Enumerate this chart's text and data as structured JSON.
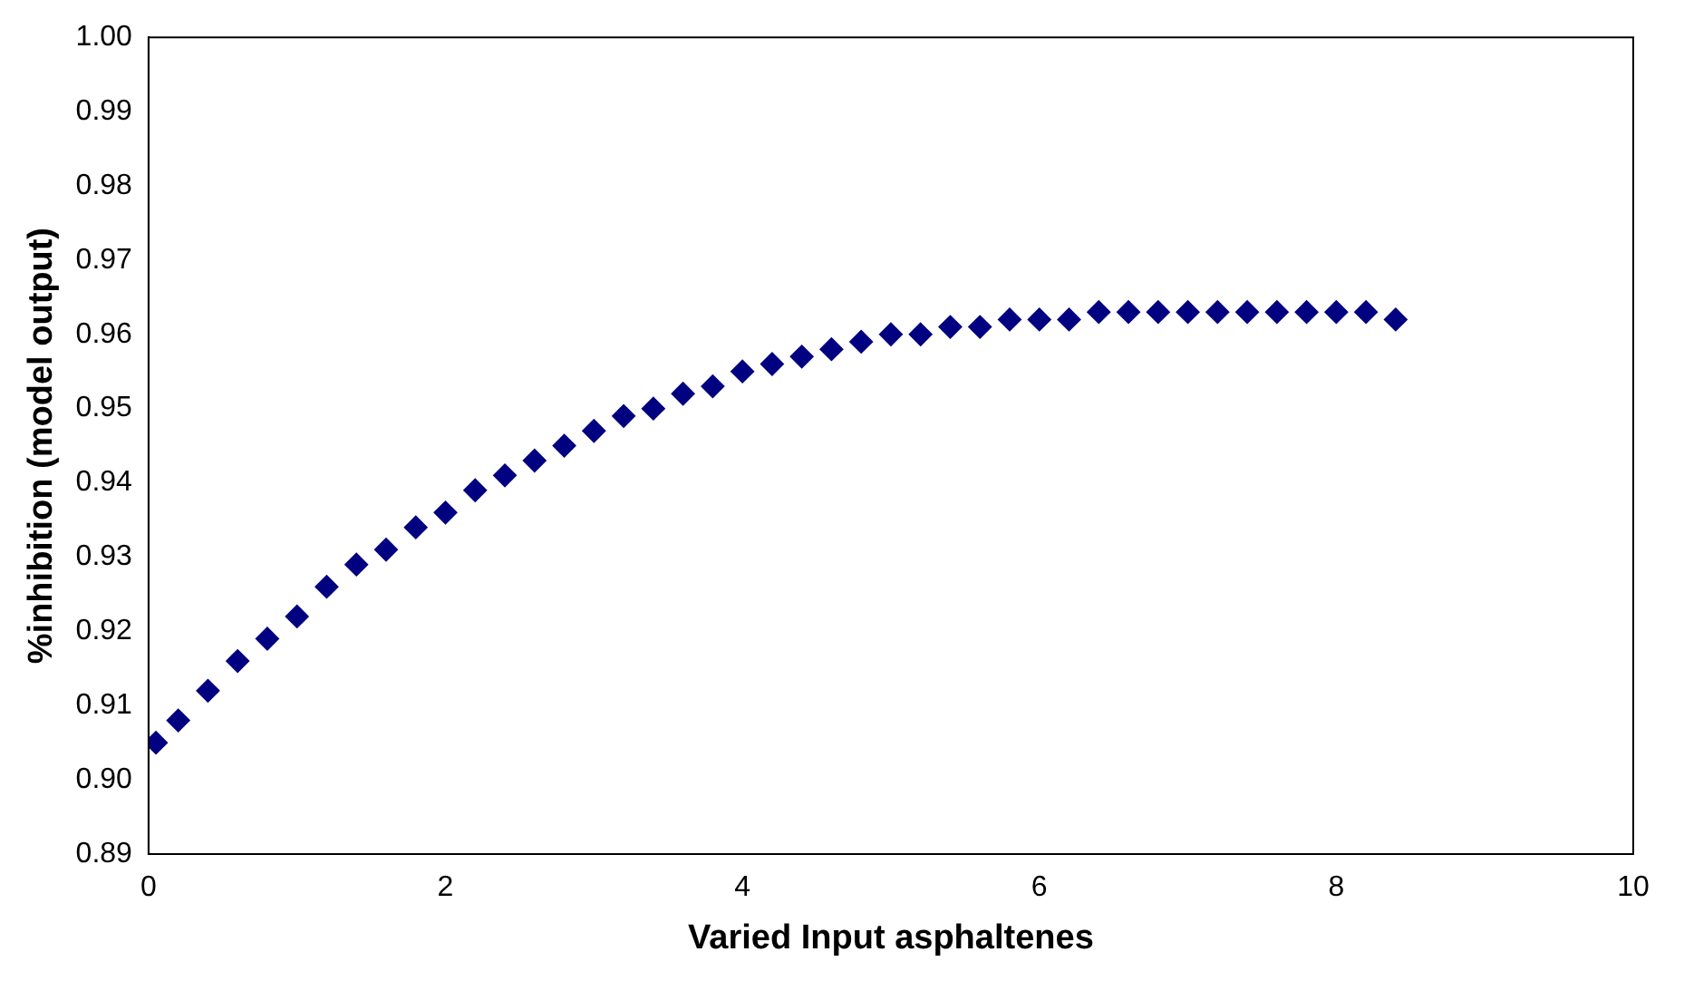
{
  "chart_data": {
    "type": "scatter",
    "xlabel": "Varied Input asphaltenes",
    "ylabel": "%inhibition (model output)",
    "xlim": [
      0,
      10
    ],
    "xticks": [
      0,
      2,
      4,
      6,
      8,
      10
    ],
    "ylim": [
      0.89,
      1.0
    ],
    "yticks": [
      {
        "value": 0.89,
        "label": "0.89"
      },
      {
        "value": 0.9,
        "label": "0.90"
      },
      {
        "value": 0.91,
        "label": "0.91"
      },
      {
        "value": 0.92,
        "label": "0.92"
      },
      {
        "value": 0.93,
        "label": "0.93"
      },
      {
        "value": 0.94,
        "label": "0.94"
      },
      {
        "value": 0.95,
        "label": "0.95"
      },
      {
        "value": 0.96,
        "label": "0.96"
      },
      {
        "value": 0.97,
        "label": "0.97"
      },
      {
        "value": 0.98,
        "label": "0.98"
      },
      {
        "value": 0.99,
        "label": "0.99"
      },
      {
        "value": 1.0,
        "label": "1.00"
      }
    ],
    "grid": false,
    "legend": false,
    "marker": "diamond",
    "series": [
      {
        "color": "#000080",
        "x": [
          0.05,
          0.2,
          0.4,
          0.6,
          0.8,
          1.0,
          1.2,
          1.4,
          1.6,
          1.8,
          2.0,
          2.2,
          2.4,
          2.6,
          2.8,
          3.0,
          3.2,
          3.4,
          3.6,
          3.8,
          4.0,
          4.2,
          4.4,
          4.6,
          4.8,
          5.0,
          5.2,
          5.4,
          5.6,
          5.8,
          6.0,
          6.2,
          6.4,
          6.6,
          6.8,
          7.0,
          7.2,
          7.4,
          7.6,
          7.8,
          8.0,
          8.2,
          8.4
        ],
        "values": [
          0.905,
          0.908,
          0.912,
          0.916,
          0.919,
          0.922,
          0.926,
          0.929,
          0.931,
          0.934,
          0.936,
          0.939,
          0.941,
          0.943,
          0.945,
          0.947,
          0.949,
          0.95,
          0.952,
          0.953,
          0.955,
          0.956,
          0.957,
          0.958,
          0.959,
          0.96,
          0.96,
          0.961,
          0.961,
          0.962,
          0.962,
          0.962,
          0.963,
          0.963,
          0.963,
          0.963,
          0.963,
          0.963,
          0.963,
          0.963,
          0.963,
          0.963,
          0.962
        ]
      }
    ]
  }
}
